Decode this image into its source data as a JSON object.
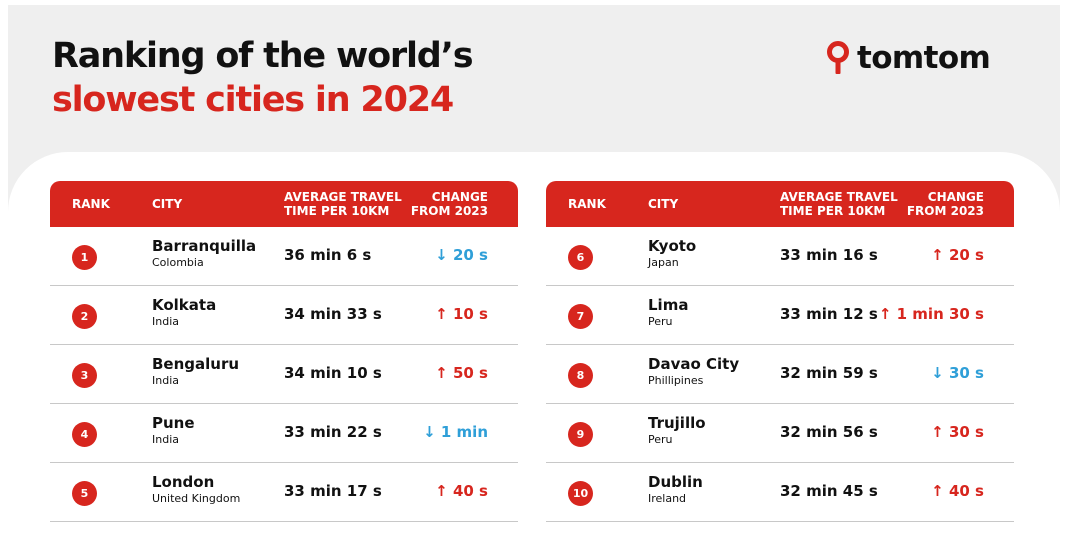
{
  "title_line1": "Ranking of the world’s",
  "title_line2": "slowest cities in 2024",
  "brand": "tomtom",
  "colors": {
    "accent": "#d7261e",
    "decrease": "#2f9fd8",
    "background": "#efefef"
  },
  "headers": {
    "rank": "RANK",
    "city": "CITY",
    "avg_line1": "AVERAGE TRAVEL",
    "avg_line2": "TIME PER 10KM",
    "change_line1": "CHANGE",
    "change_line2": "FROM 2023"
  },
  "left_rows": [
    {
      "rank": "1",
      "city": "Barranquilla",
      "country": "Colombia",
      "avg": "36 min 6 s",
      "change": "↓ 20 s",
      "direction": "down"
    },
    {
      "rank": "2",
      "city": "Kolkata",
      "country": "India",
      "avg": "34 min 33 s",
      "change": "↑ 10 s",
      "direction": "up"
    },
    {
      "rank": "3",
      "city": "Bengaluru",
      "country": "India",
      "avg": "34 min 10 s",
      "change": "↑ 50 s",
      "direction": "up"
    },
    {
      "rank": "4",
      "city": "Pune",
      "country": "India",
      "avg": "33 min 22 s",
      "change": "↓ 1 min",
      "direction": "down"
    },
    {
      "rank": "5",
      "city": "London",
      "country": "United Kingdom",
      "avg": "33 min 17 s",
      "change": "↑ 40 s",
      "direction": "up"
    }
  ],
  "right_rows": [
    {
      "rank": "6",
      "city": "Kyoto",
      "country": "Japan",
      "avg": "33 min 16 s",
      "change": "↑ 20 s",
      "direction": "up"
    },
    {
      "rank": "7",
      "city": "Lima",
      "country": "Peru",
      "avg": "33 min 12 s",
      "change": "↑ 1 min 30 s",
      "direction": "up"
    },
    {
      "rank": "8",
      "city": "Davao City",
      "country": "Phillipines",
      "avg": "32 min 59 s",
      "change": "↓ 30 s",
      "direction": "down"
    },
    {
      "rank": "9",
      "city": "Trujillo",
      "country": "Peru",
      "avg": "32 min 56 s",
      "change": "↑ 30 s",
      "direction": "up"
    },
    {
      "rank": "10",
      "city": "Dublin",
      "country": "Ireland",
      "avg": "32 min 45 s",
      "change": "↑ 40 s",
      "direction": "up"
    }
  ]
}
